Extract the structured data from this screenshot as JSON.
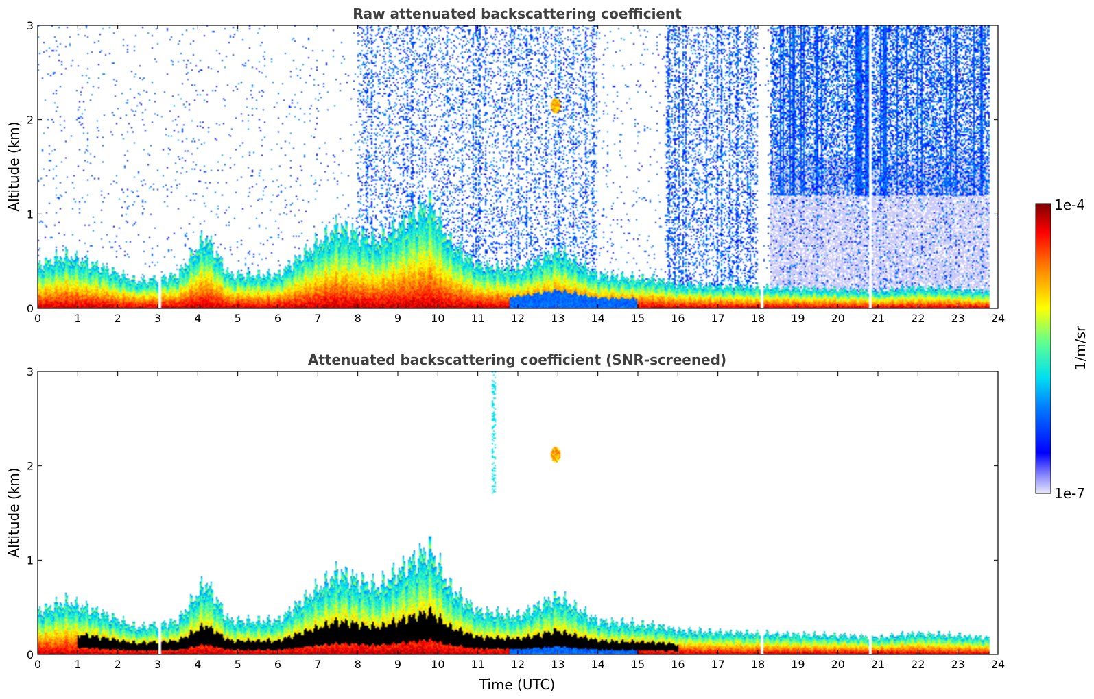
{
  "chart_data": [
    {
      "type": "heatmap",
      "title": "Raw attenuated backscattering coefficient",
      "xlabel": "",
      "ylabel": "Altitude (km)",
      "xlim": [
        0,
        24
      ],
      "ylim": [
        0,
        3
      ],
      "xticks": [
        "0",
        "1",
        "2",
        "3",
        "4",
        "5",
        "6",
        "7",
        "8",
        "9",
        "10",
        "11",
        "12",
        "13",
        "14",
        "15",
        "16",
        "17",
        "18",
        "19",
        "20",
        "21",
        "22",
        "23",
        "24"
      ],
      "yticks": [
        "0",
        "1",
        "2",
        "3"
      ],
      "screened": false,
      "aerosol_layer_top_km": [
        {
          "t": 0,
          "h": 0.45
        },
        {
          "t": 0.7,
          "h": 0.55
        },
        {
          "t": 1.5,
          "h": 0.45
        },
        {
          "t": 2.5,
          "h": 0.28
        },
        {
          "t": 3.5,
          "h": 0.35
        },
        {
          "t": 4.2,
          "h": 0.75
        },
        {
          "t": 4.8,
          "h": 0.35
        },
        {
          "t": 6,
          "h": 0.35
        },
        {
          "t": 7.5,
          "h": 0.85
        },
        {
          "t": 8.5,
          "h": 0.7
        },
        {
          "t": 9.8,
          "h": 1.1
        },
        {
          "t": 10.3,
          "h": 0.7
        },
        {
          "t": 11,
          "h": 0.45
        },
        {
          "t": 12,
          "h": 0.4
        },
        {
          "t": 13,
          "h": 0.6
        },
        {
          "t": 14,
          "h": 0.35
        },
        {
          "t": 15.5,
          "h": 0.3
        },
        {
          "t": 16,
          "h": 0.25
        },
        {
          "t": 18,
          "h": 0.22
        },
        {
          "t": 20,
          "h": 0.2
        },
        {
          "t": 21,
          "h": 0.18
        },
        {
          "t": 22,
          "h": 0.22
        },
        {
          "t": 23.8,
          "h": 0.18
        }
      ],
      "features": [
        {
          "t": 12.95,
          "h": 2.15,
          "value_log10": -5.2,
          "kind": "cloud"
        }
      ]
    },
    {
      "type": "heatmap",
      "title": "Attenuated backscattering coefficient (SNR-screened)",
      "xlabel": "Time (UTC)",
      "ylabel": "Altitude (km)",
      "xlim": [
        0,
        24
      ],
      "ylim": [
        0,
        3
      ],
      "xticks": [
        "0",
        "1",
        "2",
        "3",
        "4",
        "5",
        "6",
        "7",
        "8",
        "9",
        "10",
        "11",
        "12",
        "13",
        "14",
        "15",
        "16",
        "17",
        "18",
        "19",
        "20",
        "21",
        "22",
        "23",
        "24"
      ],
      "yticks": [
        "0",
        "1",
        "2",
        "3"
      ],
      "screened": true,
      "features": [
        {
          "t": 12.95,
          "h": 2.12,
          "value_log10": -5.2,
          "kind": "cloud"
        }
      ]
    }
  ],
  "colorbar": {
    "label": "1/m/sr",
    "min_label": "1e-7",
    "max_label": "1e-4",
    "colormap": "jet"
  }
}
